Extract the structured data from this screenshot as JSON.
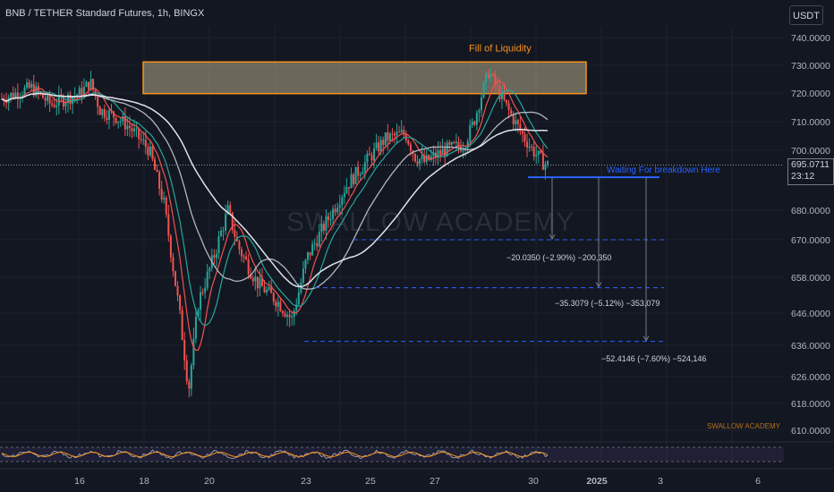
{
  "header": {
    "title": "BNB / TETHER Standard Futures, 1h, BINGX",
    "currency_button": "USDT"
  },
  "price_tag": {
    "price": "695.0711",
    "countdown": "23:12"
  },
  "colors": {
    "background": "#131722",
    "bull": "#26a69a",
    "bear": "#ef5350",
    "zone_border": "#f7931a",
    "zone_fill": "#d6c9a0",
    "target_line": "#2962ff",
    "grid": "#1e222d"
  },
  "chart_data": {
    "type": "candlestick",
    "y_axis": {
      "ticks": [
        "740.0000",
        "730.0000",
        "720.0000",
        "710.0000",
        "700.0000",
        "680.0000",
        "670.0000",
        "658.0000",
        "646.0000",
        "636.0000",
        "626.0000",
        "618.0000",
        "610.0000"
      ],
      "ylim": [
        606,
        744
      ]
    },
    "x_axis": {
      "ticks": [
        "16",
        "18",
        "20",
        "23",
        "25",
        "27",
        "30",
        "2025",
        "3",
        "6"
      ]
    },
    "zone": {
      "label": "Fill of Liquidity",
      "price_top": 731.2,
      "price_bottom": 719.8
    },
    "breakdown_level": {
      "label": "Waiting For breakdown Here",
      "price": 691.0
    },
    "targets": [
      {
        "price": 670.0,
        "label": "−20.0350 (−2.90%) −200,350"
      },
      {
        "price": 654.5,
        "label": "−35.3079 (−5.12%) −353,079"
      },
      {
        "price": 637.2,
        "label": "−52.4146 (−7.60%) −524,146"
      }
    ],
    "price_path_approx": [
      [
        0,
        718
      ],
      [
        6,
        722
      ],
      [
        10,
        716
      ],
      [
        16,
        720
      ],
      [
        18,
        724
      ],
      [
        20,
        714
      ],
      [
        23,
        712
      ],
      [
        26,
        708
      ],
      [
        30,
        700
      ],
      [
        33,
        682
      ],
      [
        36,
        648
      ],
      [
        38,
        622
      ],
      [
        40,
        650
      ],
      [
        43,
        664
      ],
      [
        46,
        680
      ],
      [
        48,
        668
      ],
      [
        52,
        656
      ],
      [
        56,
        650
      ],
      [
        59,
        644
      ],
      [
        62,
        664
      ],
      [
        66,
        676
      ],
      [
        70,
        688
      ],
      [
        74,
        696
      ],
      [
        78,
        704
      ],
      [
        82,
        706
      ],
      [
        84,
        698
      ],
      [
        86,
        696
      ],
      [
        90,
        700
      ],
      [
        94,
        702
      ],
      [
        96,
        710
      ],
      [
        99,
        728
      ],
      [
        100,
        724
      ],
      [
        103,
        714
      ],
      [
        106,
        705
      ],
      [
        108,
        700
      ],
      [
        110,
        696
      ],
      [
        111,
        695.07
      ]
    ],
    "watermark": "SWALLOW ACADEMY",
    "credit": "SWALLOW ACADEMY"
  }
}
